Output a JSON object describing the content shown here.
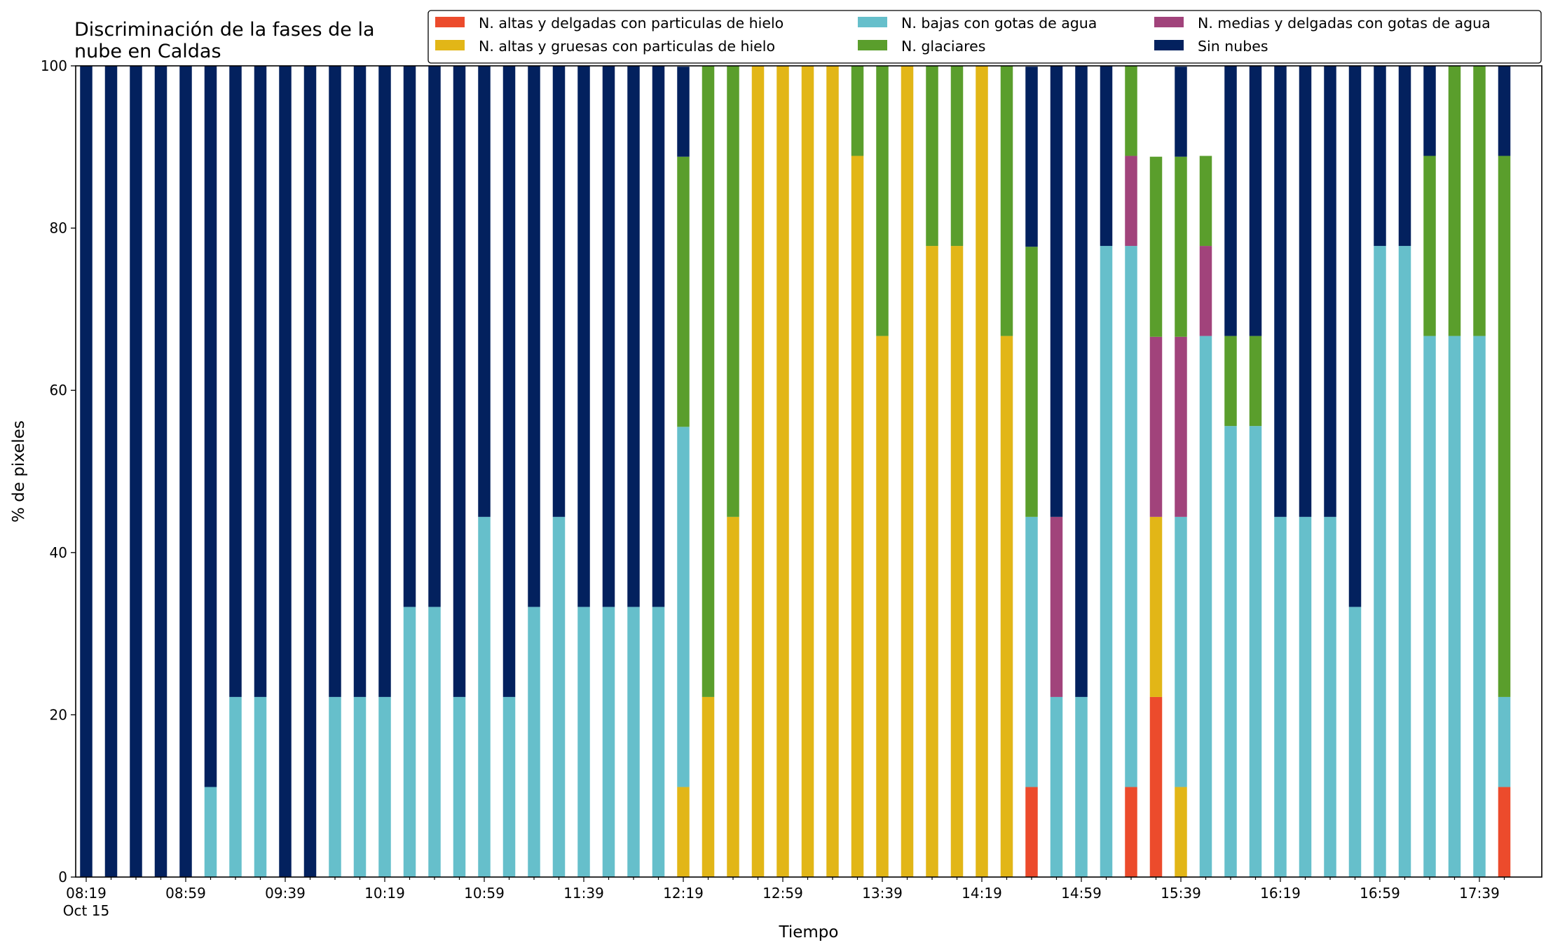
{
  "chart_data": {
    "type": "bar",
    "stacked": true,
    "title": "Discriminación de la fases de la\nnube en Caldas",
    "xlabel": "Tiempo",
    "ylabel": "% de pixeles",
    "ylim": [
      0,
      100
    ],
    "yticks": [
      0,
      20,
      40,
      60,
      80,
      100
    ],
    "x_tick_labels": [
      {
        "index": 0,
        "label": "08:19",
        "sublabel": "Oct 15"
      },
      {
        "index": 4,
        "label": "08:59"
      },
      {
        "index": 8,
        "label": "09:39"
      },
      {
        "index": 12,
        "label": "10:19"
      },
      {
        "index": 16,
        "label": "10:59"
      },
      {
        "index": 20,
        "label": "11:39"
      },
      {
        "index": 24,
        "label": "12:19"
      },
      {
        "index": 28,
        "label": "12:59"
      },
      {
        "index": 32,
        "label": "13:39"
      },
      {
        "index": 36,
        "label": "14:19"
      },
      {
        "index": 40,
        "label": "14:59"
      },
      {
        "index": 44,
        "label": "15:39"
      },
      {
        "index": 48,
        "label": "16:19"
      },
      {
        "index": 52,
        "label": "16:59"
      },
      {
        "index": 56,
        "label": "17:39"
      }
    ],
    "bar_count": 58,
    "legend_position": "top-right",
    "legend": [
      "N. altas y delgadas con particulas de hielo",
      "N. altas y gruesas con particulas de hielo",
      "N. bajas con gotas de agua",
      "N. glaciares",
      "N. medias y delgadas con gotas de agua",
      "Sin nubes"
    ],
    "stack_order": [
      "N. altas y delgadas con particulas de hielo",
      "N. altas y gruesas con particulas de hielo",
      "N. bajas con gotas de agua",
      "N. medias y delgadas con gotas de agua",
      "N. glaciares",
      "Sin nubes"
    ],
    "colors": {
      "N. altas y delgadas con particulas de hielo": "#ec4b2c",
      "N. altas y gruesas con particulas de hielo": "#e2b617",
      "N. bajas con gotas de agua": "#66bfcb",
      "N. glaciares": "#5a9e2c",
      "N. medias y delgadas con gotas de agua": "#a1437b",
      "Sin nubes": "#03215e"
    },
    "series": [
      {
        "name": "N. altas y delgadas con particulas de hielo",
        "values": [
          0,
          0,
          0,
          0,
          0,
          0,
          0,
          0,
          0,
          0,
          0,
          0,
          0,
          0,
          0,
          0,
          0,
          0,
          0,
          0,
          0,
          0,
          0,
          0,
          0,
          0,
          0,
          0,
          0,
          0,
          0,
          0,
          0,
          0,
          0,
          0,
          0,
          0,
          11.1,
          0,
          0,
          0,
          11.1,
          22.2,
          0,
          0,
          0,
          0,
          0,
          0,
          0,
          0,
          0,
          0,
          0,
          0,
          0,
          11.1
        ]
      },
      {
        "name": "N. altas y gruesas con particulas de hielo",
        "values": [
          0,
          0,
          0,
          0,
          0,
          0,
          0,
          0,
          0,
          0,
          0,
          0,
          0,
          0,
          0,
          0,
          0,
          0,
          0,
          0,
          0,
          0,
          0,
          0,
          11.1,
          22.2,
          44.4,
          100,
          100,
          100,
          100,
          88.9,
          66.7,
          100,
          77.8,
          77.8,
          100,
          66.7,
          0,
          0,
          0,
          0,
          0,
          22.2,
          11.1,
          0,
          0,
          0,
          0,
          0,
          0,
          0,
          0,
          0,
          0,
          0,
          0,
          0
        ]
      },
      {
        "name": "N. bajas con gotas de agua",
        "values": [
          0,
          0,
          0,
          0,
          0,
          11.1,
          22.2,
          22.2,
          0,
          0,
          22.2,
          22.2,
          22.2,
          33.3,
          33.3,
          22.2,
          44.4,
          22.2,
          33.3,
          44.4,
          33.3,
          33.3,
          33.3,
          33.3,
          44.4,
          0,
          0,
          0,
          0,
          0,
          0,
          0,
          0,
          0,
          0,
          0,
          0,
          0,
          33.3,
          22.2,
          22.2,
          77.8,
          66.7,
          0,
          33.3,
          66.7,
          55.6,
          55.6,
          44.4,
          44.4,
          44.4,
          33.3,
          77.8,
          77.8,
          66.7,
          66.7,
          66.7,
          11.1
        ]
      },
      {
        "name": "N. medias y delgadas con gotas de agua",
        "values": [
          0,
          0,
          0,
          0,
          0,
          0,
          0,
          0,
          0,
          0,
          0,
          0,
          0,
          0,
          0,
          0,
          0,
          0,
          0,
          0,
          0,
          0,
          0,
          0,
          0,
          0,
          0,
          0,
          0,
          0,
          0,
          0,
          0,
          0,
          0,
          0,
          0,
          0,
          0,
          22.2,
          0,
          0,
          11.1,
          22.2,
          22.2,
          11.1,
          0,
          0,
          0,
          0,
          0,
          0,
          0,
          0,
          0,
          0,
          0,
          0
        ]
      },
      {
        "name": "N. glaciares",
        "values": [
          0,
          0,
          0,
          0,
          0,
          0,
          0,
          0,
          0,
          0,
          0,
          0,
          0,
          0,
          0,
          0,
          0,
          0,
          0,
          0,
          0,
          0,
          0,
          0,
          33.3,
          77.8,
          55.6,
          0,
          0,
          0,
          0,
          11.1,
          33.3,
          0,
          22.2,
          22.2,
          0,
          33.3,
          33.3,
          0,
          0,
          0,
          11.1,
          22.2,
          22.2,
          11.1,
          11.1,
          11.1,
          0,
          0,
          0,
          0,
          0,
          0,
          22.2,
          33.3,
          33.3,
          66.7
        ]
      },
      {
        "name": "Sin nubes",
        "values": [
          100,
          100,
          100,
          100,
          100,
          88.9,
          77.8,
          77.8,
          100,
          100,
          77.8,
          77.8,
          77.8,
          66.7,
          66.7,
          77.8,
          55.6,
          77.8,
          66.7,
          55.6,
          66.7,
          66.7,
          66.7,
          66.7,
          11.1,
          0,
          0,
          0,
          0,
          0,
          0,
          0,
          0,
          0,
          0,
          0,
          0,
          0,
          22.2,
          55.6,
          77.8,
          22.2,
          0,
          0,
          11.1,
          0,
          33.3,
          33.3,
          55.6,
          55.6,
          55.6,
          66.7,
          22.2,
          22.2,
          11.1,
          0,
          0,
          11.1
        ]
      }
    ]
  }
}
